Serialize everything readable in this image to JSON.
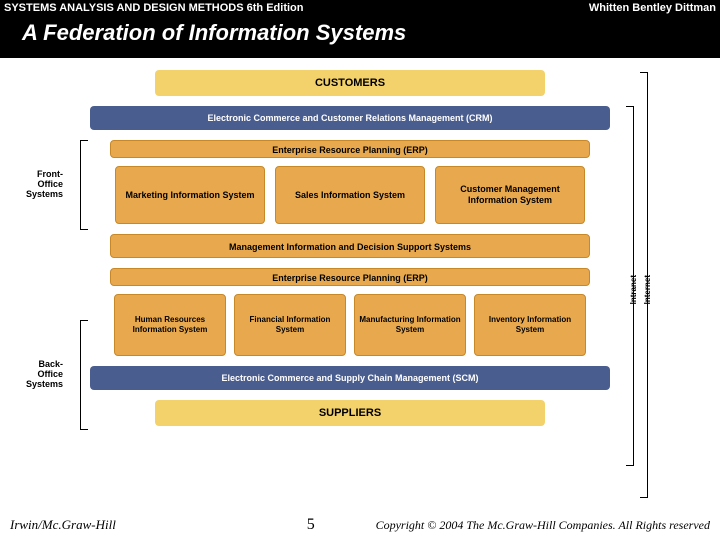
{
  "header": {
    "book_title": "SYSTEMS ANALYSIS AND DESIGN METHODS  6th Edition",
    "authors": "Whitten  Bentley  Dittman",
    "main_title": "A Federation of Information Systems"
  },
  "diagram": {
    "customers": "CUSTOMERS",
    "crm": "Electronic Commerce and Customer Relations Management (CRM)",
    "erp1": "Enterprise Resource Planning (ERP)",
    "front_row": [
      "Marketing Information System",
      "Sales Information System",
      "Customer Management Information System"
    ],
    "mis": "Management Information and Decision Support Systems",
    "erp2": "Enterprise Resource Planning (ERP)",
    "back_row": [
      "Human Resources Information System",
      "Financial Information System",
      "Manufacturing Information System",
      "Inventory Information System"
    ],
    "scm": "Electronic Commerce and Supply Chain Management (SCM)",
    "suppliers": "SUPPLIERS",
    "labels": {
      "front_office": "Front-Office Systems",
      "back_office": "Back-Office Systems",
      "intranet": "Intranet",
      "internet": "Internet"
    },
    "colors": {
      "yellow": "#f3d26b",
      "blue": "#4a5d8f",
      "orange": "#e8a94e",
      "header_bg": "#000000",
      "text_light": "#ffffff"
    }
  },
  "footer": {
    "publisher": "Irwin/Mc.Graw-Hill",
    "slide_number": "5",
    "copyright": "Copyright © 2004 The Mc.Graw-Hill Companies. All Rights reserved"
  }
}
